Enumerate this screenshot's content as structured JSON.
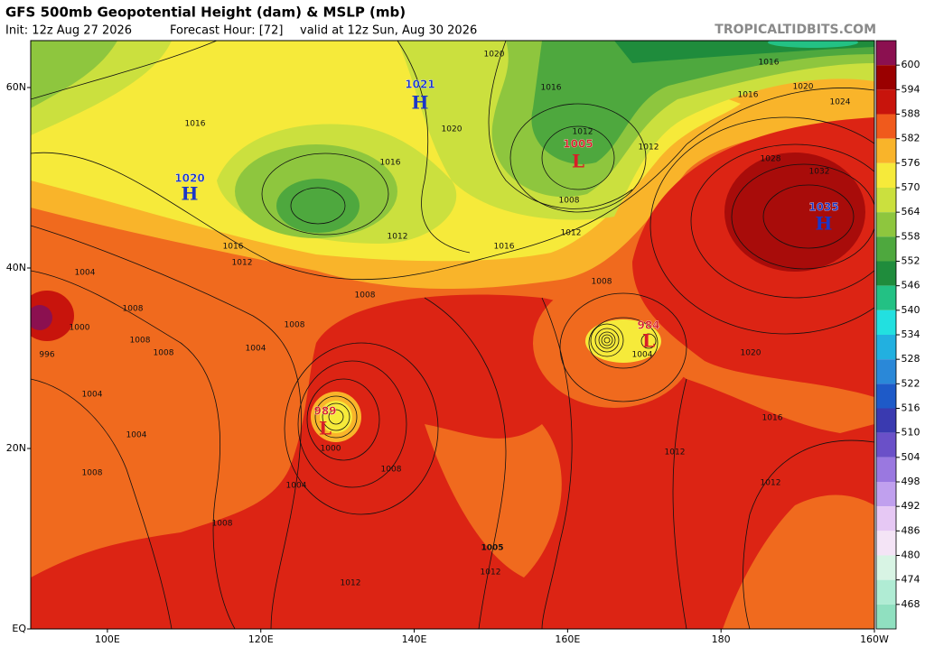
{
  "header": {
    "title": "GFS 500mb Geopotential Height (dam) & MSLP (mb)",
    "subtitle": [
      "Init: 12z Aug 27 2026",
      "Forecast Hour: [72]",
      "valid at 12z Sun, Aug 30 2026"
    ],
    "watermark": "TROPICALTIDBITS.COM"
  },
  "axes": {
    "lon_lim": [
      90,
      200
    ],
    "lat_lim": [
      0,
      65.2
    ],
    "lat_ticks": [
      {
        "value": 60,
        "label": "60N"
      },
      {
        "value": 40,
        "label": "40N"
      },
      {
        "value": 20,
        "label": "20N"
      },
      {
        "value": 0,
        "label": "EQ"
      }
    ],
    "lon_ticks": [
      {
        "value": 100,
        "label": "100E"
      },
      {
        "value": 120,
        "label": "120E"
      },
      {
        "value": 140,
        "label": "140E"
      },
      {
        "value": 160,
        "label": "160E"
      },
      {
        "value": 180,
        "label": "180"
      },
      {
        "value": 200,
        "label": "160W"
      }
    ]
  },
  "colorbar": {
    "levels": [
      600,
      594,
      588,
      582,
      576,
      570,
      564,
      558,
      552,
      546,
      540,
      534,
      528,
      522,
      516,
      510,
      504,
      498,
      492,
      486,
      480,
      474,
      468
    ],
    "colors": [
      "#8b1050",
      "#9a0000",
      "#c8140c",
      "#f05a1c",
      "#f9b42a",
      "#f6ea3a",
      "#cbe03e",
      "#8ec63e",
      "#4ea83e",
      "#1f8c3c",
      "#23c184",
      "#22e0e0",
      "#22b0e0",
      "#2a88d8",
      "#1e5ac8",
      "#3a3ab0",
      "#6a50c8",
      "#9a78e0",
      "#c0a0ee",
      "#e6c8f4",
      "#f4e4f6",
      "#d8f4e4",
      "#b0ecd4",
      "#90e0c0"
    ]
  },
  "pressure_centers": [
    {
      "kind": "H",
      "value": 1021
    },
    {
      "kind": "H",
      "value": 1020
    },
    {
      "kind": "L",
      "value": 1005
    },
    {
      "kind": "H",
      "value": 1035
    },
    {
      "kind": "L",
      "value": 984
    },
    {
      "kind": "L",
      "value": 989
    }
  ],
  "isobar_labels": [
    1020,
    1016,
    1020,
    1016,
    1024,
    1016,
    1020,
    1016,
    1016,
    1012,
    1012,
    1028,
    1032,
    1008,
    1012,
    1016,
    1012,
    1016,
    1012,
    1004,
    1008,
    1008,
    1008,
    1000,
    1008,
    1004,
    1008,
    996,
    1008,
    1020,
    1004,
    1004,
    1016,
    1004,
    1000,
    1012,
    1008,
    1008,
    1012,
    1004,
    1008,
    1012,
    1005,
    1012
  ]
}
